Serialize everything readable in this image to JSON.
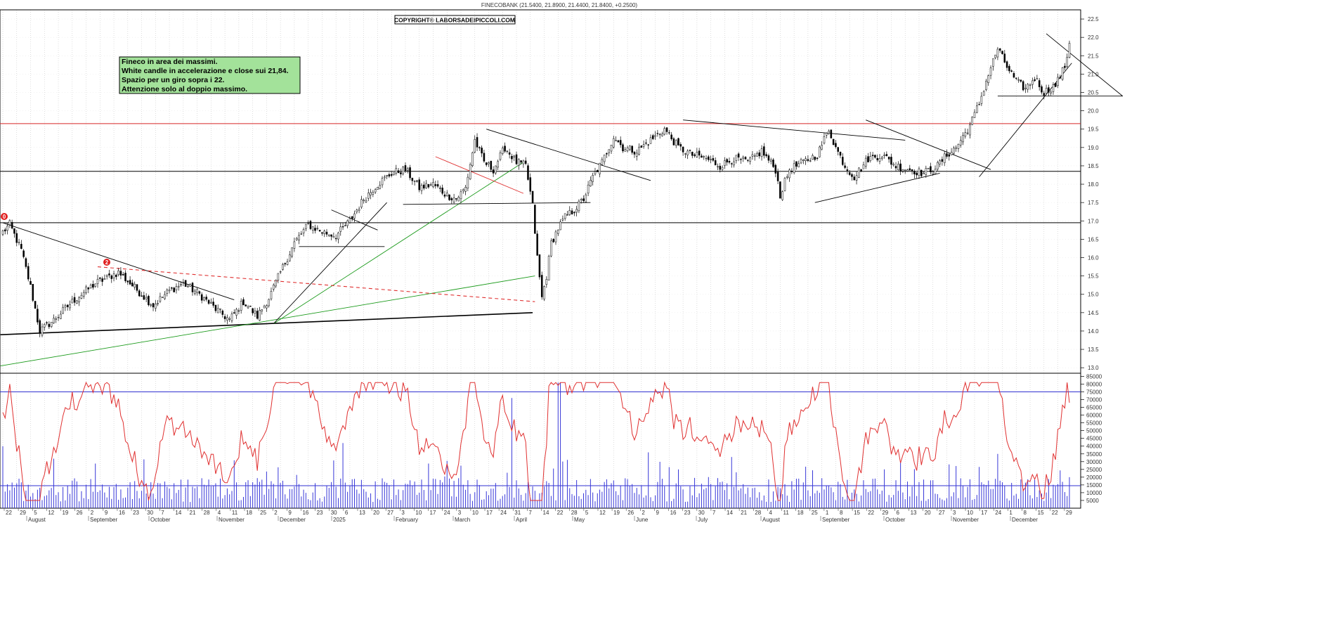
{
  "header": {
    "title": "FINECOBANK (21.5400, 21.8900, 21.4400, 21.8400, +0.2500)",
    "copyright": "COPYRIGHT© LABORSADEIPICCOLI.COM"
  },
  "note": {
    "line1": "Fineco in area dei massimi.",
    "line2": "White candle in accelerazione e close sui 21,84.",
    "line3": "Spazio per un giro sopra i 22.",
    "line4": "Attenzione solo al doppio massimo."
  },
  "markers": {
    "m0": "0",
    "m2": "2"
  },
  "chart_data": [
    {
      "type": "candlestick",
      "title": "FINECOBANK (21.5400, 21.8900, 21.4400, 21.8400, +0.2500)",
      "ylim": [
        12.85,
        22.75
      ],
      "y_ticks": [
        "13.0",
        "13.5",
        "14.0",
        "14.5",
        "15.0",
        "15.5",
        "16.0",
        "16.5",
        "17.0",
        "17.5",
        "18.0",
        "18.5",
        "19.0",
        "19.5",
        "20.0",
        "20.5",
        "21.0",
        "21.5",
        "22.0",
        "22.5"
      ],
      "horizontal_levels": [
        {
          "value": 16.95,
          "color": "#000000"
        },
        {
          "value": 18.35,
          "color": "#000000"
        },
        {
          "value": 19.65,
          "color": "#d62728"
        }
      ],
      "last_close": 21.84,
      "close_waypoints": [
        {
          "i": 0,
          "v": 16.7
        },
        {
          "i": 3,
          "v": 16.9
        },
        {
          "i": 8,
          "v": 16.2
        },
        {
          "i": 12,
          "v": 15.2
        },
        {
          "i": 16,
          "v": 14.0
        },
        {
          "i": 22,
          "v": 14.3
        },
        {
          "i": 30,
          "v": 14.8
        },
        {
          "i": 40,
          "v": 15.3
        },
        {
          "i": 50,
          "v": 15.6
        },
        {
          "i": 55,
          "v": 15.3
        },
        {
          "i": 60,
          "v": 15.0
        },
        {
          "i": 65,
          "v": 14.7
        },
        {
          "i": 72,
          "v": 15.1
        },
        {
          "i": 78,
          "v": 15.3
        },
        {
          "i": 85,
          "v": 15.0
        },
        {
          "i": 92,
          "v": 14.6
        },
        {
          "i": 98,
          "v": 14.3
        },
        {
          "i": 104,
          "v": 14.8
        },
        {
          "i": 110,
          "v": 14.4
        },
        {
          "i": 115,
          "v": 14.9
        },
        {
          "i": 120,
          "v": 15.6
        },
        {
          "i": 126,
          "v": 16.4
        },
        {
          "i": 132,
          "v": 16.9
        },
        {
          "i": 138,
          "v": 16.7
        },
        {
          "i": 144,
          "v": 16.6
        },
        {
          "i": 150,
          "v": 17.0
        },
        {
          "i": 156,
          "v": 17.6
        },
        {
          "i": 162,
          "v": 18.0
        },
        {
          "i": 168,
          "v": 18.3
        },
        {
          "i": 174,
          "v": 18.4
        },
        {
          "i": 180,
          "v": 17.9
        },
        {
          "i": 186,
          "v": 18.0
        },
        {
          "i": 192,
          "v": 17.7
        },
        {
          "i": 196,
          "v": 17.6
        },
        {
          "i": 200,
          "v": 17.9
        },
        {
          "i": 204,
          "v": 19.2
        },
        {
          "i": 208,
          "v": 18.6
        },
        {
          "i": 212,
          "v": 18.4
        },
        {
          "i": 217,
          "v": 19.0
        },
        {
          "i": 222,
          "v": 18.6
        },
        {
          "i": 226,
          "v": 18.5
        },
        {
          "i": 229,
          "v": 17.4
        },
        {
          "i": 231,
          "v": 16.0
        },
        {
          "i": 233,
          "v": 14.9
        },
        {
          "i": 235,
          "v": 15.5
        },
        {
          "i": 237,
          "v": 16.4
        },
        {
          "i": 240,
          "v": 16.8
        },
        {
          "i": 243,
          "v": 17.1
        },
        {
          "i": 247,
          "v": 17.3
        },
        {
          "i": 251,
          "v": 17.6
        },
        {
          "i": 255,
          "v": 18.2
        },
        {
          "i": 259,
          "v": 18.6
        },
        {
          "i": 264,
          "v": 19.3
        },
        {
          "i": 268,
          "v": 19.0
        },
        {
          "i": 274,
          "v": 18.9
        },
        {
          "i": 280,
          "v": 19.2
        },
        {
          "i": 286,
          "v": 19.5
        },
        {
          "i": 292,
          "v": 19.0
        },
        {
          "i": 298,
          "v": 18.8
        },
        {
          "i": 304,
          "v": 18.7
        },
        {
          "i": 310,
          "v": 18.5
        },
        {
          "i": 316,
          "v": 18.7
        },
        {
          "i": 322,
          "v": 18.6
        },
        {
          "i": 328,
          "v": 18.9
        },
        {
          "i": 334,
          "v": 18.4
        },
        {
          "i": 336,
          "v": 17.7
        },
        {
          "i": 340,
          "v": 18.4
        },
        {
          "i": 346,
          "v": 18.6
        },
        {
          "i": 352,
          "v": 18.8
        },
        {
          "i": 357,
          "v": 19.5
        },
        {
          "i": 360,
          "v": 19.0
        },
        {
          "i": 364,
          "v": 18.5
        },
        {
          "i": 368,
          "v": 18.2
        },
        {
          "i": 374,
          "v": 18.7
        },
        {
          "i": 380,
          "v": 18.8
        },
        {
          "i": 386,
          "v": 18.5
        },
        {
          "i": 392,
          "v": 18.4
        },
        {
          "i": 398,
          "v": 18.3
        },
        {
          "i": 404,
          "v": 18.5
        },
        {
          "i": 408,
          "v": 18.8
        },
        {
          "i": 412,
          "v": 19.0
        },
        {
          "i": 418,
          "v": 19.6
        },
        {
          "i": 422,
          "v": 20.2
        },
        {
          "i": 426,
          "v": 21.0
        },
        {
          "i": 430,
          "v": 21.7
        },
        {
          "i": 434,
          "v": 21.2
        },
        {
          "i": 438,
          "v": 20.8
        },
        {
          "i": 442,
          "v": 20.6
        },
        {
          "i": 446,
          "v": 20.9
        },
        {
          "i": 450,
          "v": 20.5
        },
        {
          "i": 455,
          "v": 20.7
        },
        {
          "i": 459,
          "v": 21.2
        },
        {
          "i": 461,
          "v": 21.84
        }
      ]
    },
    {
      "type": "bar+line",
      "title": "",
      "ylim": [
        0,
        87000
      ],
      "y_ticks": [
        "5000",
        "10000",
        "15000",
        "20000",
        "25000",
        "30000",
        "35000",
        "40000",
        "45000",
        "50000",
        "55000",
        "60000",
        "65000",
        "70000",
        "75000",
        "80000",
        "85000"
      ],
      "horizontal_levels": [
        {
          "value": 14500,
          "color": "#3030d0"
        },
        {
          "value": 75000,
          "color": "#3030d0"
        }
      ],
      "series": [
        {
          "type": "bar",
          "color": "#3838d8",
          "typical_range": [
            4000,
            32000
          ],
          "peak": 81000
        },
        {
          "type": "line",
          "color": "#e03030",
          "range": [
            5000,
            81000
          ],
          "last_value": 68000
        }
      ]
    }
  ],
  "x_axis": {
    "day_ticks": [
      "22",
      "29",
      "5",
      "12",
      "19",
      "26",
      "2",
      "9",
      "16",
      "23",
      "30",
      "7",
      "14",
      "21",
      "28",
      "4",
      "11",
      "18",
      "25",
      "2",
      "9",
      "16",
      "23",
      "30",
      "6",
      "13",
      "20",
      "27",
      "3",
      "10",
      "17",
      "24",
      "3",
      "10",
      "17",
      "24",
      "31",
      "7",
      "14",
      "22",
      "28",
      "5",
      "12",
      "19",
      "26",
      "2",
      "9",
      "16",
      "23",
      "30",
      "7",
      "14",
      "21",
      "28",
      "4",
      "11",
      "18",
      "25",
      "1",
      "8",
      "15",
      "22",
      "29",
      "6",
      "13",
      "20",
      "27",
      "3",
      "10",
      "17",
      "24",
      "1",
      "8",
      "15",
      "22",
      "29"
    ],
    "months": [
      "August",
      "September",
      "October",
      "November",
      "December",
      "2025",
      "February",
      "March",
      "April",
      "May",
      "June",
      "July",
      "August",
      "September",
      "October",
      "November",
      "December"
    ]
  }
}
